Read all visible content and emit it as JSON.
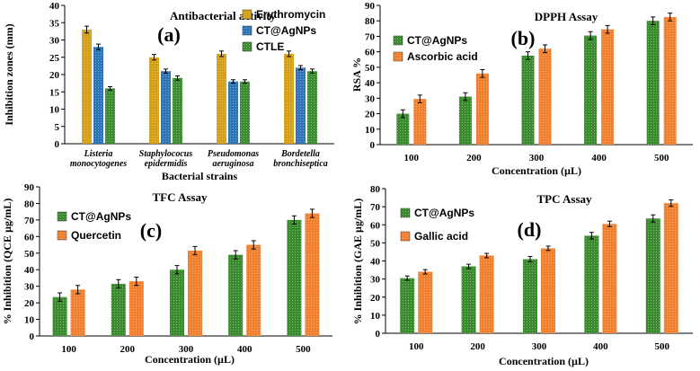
{
  "chart_data": [
    {
      "type": "bar",
      "panel_label": "(a)",
      "title": "Antibacterial activity",
      "xlabel": "Bacterial strains",
      "ylabel": "Inhibition zones (mm)",
      "ylim": [
        0,
        40
      ],
      "yticks": [
        0,
        5,
        10,
        15,
        20,
        25,
        30,
        35,
        40
      ],
      "categories": [
        [
          "Listeria",
          "monocytogenes"
        ],
        [
          "Staphylococus",
          "epidermidis"
        ],
        [
          "Pseudomonas",
          "aeruginosa"
        ],
        [
          "Bordetella",
          "bronchiseptica"
        ]
      ],
      "series": [
        {
          "name": "Erythromycin",
          "color": "#d4a017",
          "values": [
            33,
            25,
            26,
            26
          ],
          "errors": [
            1,
            0.8,
            0.8,
            0.8
          ]
        },
        {
          "name": "CT@AgNPs",
          "color": "#2e75b6",
          "values": [
            28,
            21,
            18,
            22
          ],
          "errors": [
            0.8,
            0.6,
            0.5,
            0.6
          ]
        },
        {
          "name": "CTLE",
          "color": "#3c8c32",
          "values": [
            16,
            19,
            18,
            21
          ],
          "errors": [
            0.5,
            0.6,
            0.5,
            0.6
          ]
        }
      ],
      "legend_position": "top-right"
    },
    {
      "type": "bar",
      "panel_label": "(b)",
      "title": "DPPH Assay",
      "xlabel": "Concentration (µL)",
      "ylabel": "RSA %",
      "ylim": [
        0,
        90
      ],
      "yticks": [
        0,
        10,
        20,
        30,
        40,
        50,
        60,
        70,
        80,
        90
      ],
      "categories": [
        "100",
        "200",
        "300",
        "400",
        "500"
      ],
      "series": [
        {
          "name": "CT@AgNPs",
          "color": "#3a8a2e",
          "values": [
            20,
            31,
            57.5,
            70.5,
            80
          ],
          "errors": [
            2.5,
            2.5,
            2.5,
            2.5,
            2.5
          ]
        },
        {
          "name": "Ascorbic acid",
          "color": "#f07f2e",
          "values": [
            29.5,
            46,
            62,
            74.5,
            82.5
          ],
          "errors": [
            2.5,
            2.5,
            2.5,
            2.5,
            2.5
          ]
        }
      ],
      "legend_position": "top-left"
    },
    {
      "type": "bar",
      "panel_label": "(c)",
      "title": "TFC Assay",
      "xlabel": "Concentration (µL)",
      "ylabel": "% Inhibition (QCE µg/mL)",
      "ylim": [
        0,
        90
      ],
      "yticks": [
        0,
        10,
        20,
        30,
        40,
        50,
        60,
        70,
        80,
        90
      ],
      "categories": [
        "100",
        "200",
        "300",
        "400",
        "500"
      ],
      "series": [
        {
          "name": "CT@AgNPs",
          "color": "#3a8a2e",
          "values": [
            23.5,
            31.5,
            40,
            49,
            70
          ],
          "errors": [
            2.5,
            2.5,
            2.5,
            2.5,
            2.5
          ]
        },
        {
          "name": "Quercetin",
          "color": "#f07f2e",
          "values": [
            28,
            33,
            51.5,
            55,
            74
          ],
          "errors": [
            2.5,
            2.5,
            2.5,
            2.5,
            2.5
          ]
        }
      ],
      "legend_position": "top-left"
    },
    {
      "type": "bar",
      "panel_label": "(d)",
      "title": "TPC Assay",
      "xlabel": "Concentration (µL)",
      "ylabel": "% Inhibition (GAE µg/mL)",
      "ylim": [
        0,
        80
      ],
      "yticks": [
        0,
        10,
        20,
        30,
        40,
        50,
        60,
        70,
        80
      ],
      "categories": [
        "100",
        "200",
        "300",
        "400",
        "500"
      ],
      "series": [
        {
          "name": "CT@AgNPs",
          "color": "#3a8a2e",
          "values": [
            30.5,
            37,
            41,
            54,
            63.5
          ],
          "errors": [
            1.2,
            1.2,
            1.5,
            1.8,
            2
          ]
        },
        {
          "name": "Gallic acid",
          "color": "#f07f2e",
          "values": [
            34,
            43,
            47,
            60.5,
            72
          ],
          "errors": [
            1.2,
            1.2,
            1.2,
            1.5,
            1.8
          ]
        }
      ],
      "legend_position": "top-left"
    }
  ]
}
